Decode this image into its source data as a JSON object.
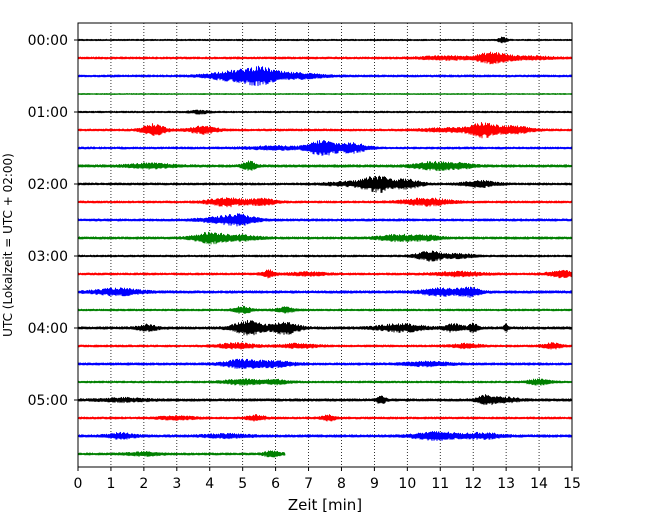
{
  "chart_data": {
    "type": "line",
    "title": "",
    "xlabel": "Zeit  [min]",
    "ylabel": "UTC (Lokalzeit = UTC + 02:00)",
    "xlim": [
      0,
      15
    ],
    "x_ticks": [
      0,
      1,
      2,
      3,
      4,
      5,
      6,
      7,
      8,
      9,
      10,
      11,
      12,
      13,
      14,
      15
    ],
    "y_tick_labels": [
      "00:00",
      "01:00",
      "02:00",
      "03:00",
      "04:00",
      "05:00"
    ],
    "row_span_minutes": 15,
    "x_grid": "dotted",
    "colors": [
      "#000000",
      "#ff0000",
      "#0000ff",
      "#008000"
    ],
    "rows": [
      {
        "start": "00:00",
        "color": "#000000",
        "end": 15,
        "noise": 0.7,
        "bursts": [
          [
            12.9,
            0.1,
            2.5
          ]
        ]
      },
      {
        "start": "00:15",
        "color": "#ff0000",
        "end": 15,
        "noise": 1.0,
        "bursts": [
          [
            12.6,
            0.35,
            5.0
          ],
          [
            11.2,
            0.6,
            1.5
          ],
          [
            13.7,
            0.5,
            1.5
          ]
        ]
      },
      {
        "start": "00:30",
        "color": "#0000ff",
        "end": 15,
        "noise": 1.0,
        "bursts": [
          [
            5.5,
            0.4,
            7.5
          ],
          [
            4.6,
            0.5,
            4.0
          ],
          [
            6.6,
            0.6,
            2.5
          ]
        ]
      },
      {
        "start": "00:45",
        "color": "#008000",
        "end": 15,
        "noise": 0.5,
        "bursts": []
      },
      {
        "start": "01:00",
        "color": "#000000",
        "end": 15,
        "noise": 0.8,
        "bursts": [
          [
            3.7,
            0.2,
            1.5
          ]
        ]
      },
      {
        "start": "01:15",
        "color": "#ff0000",
        "end": 15,
        "noise": 1.0,
        "bursts": [
          [
            2.3,
            0.25,
            5.5
          ],
          [
            3.8,
            0.3,
            3.5
          ],
          [
            12.3,
            0.3,
            6.5
          ],
          [
            13.2,
            0.4,
            3.5
          ],
          [
            11.2,
            0.5,
            1.8
          ]
        ]
      },
      {
        "start": "01:30",
        "color": "#0000ff",
        "end": 15,
        "noise": 1.0,
        "bursts": [
          [
            7.4,
            0.3,
            7.0
          ],
          [
            8.3,
            0.35,
            4.5
          ],
          [
            6.0,
            0.6,
            1.5
          ]
        ]
      },
      {
        "start": "01:45",
        "color": "#008000",
        "end": 15,
        "noise": 1.2,
        "bursts": [
          [
            2.2,
            0.5,
            2.0
          ],
          [
            5.2,
            0.15,
            4.0
          ],
          [
            10.8,
            0.4,
            3.5
          ],
          [
            11.6,
            0.3,
            2.0
          ]
        ]
      },
      {
        "start": "02:00",
        "color": "#000000",
        "end": 15,
        "noise": 1.0,
        "bursts": [
          [
            9.1,
            0.35,
            7.5
          ],
          [
            10.0,
            0.3,
            4.0
          ],
          [
            12.2,
            0.35,
            3.0
          ],
          [
            8.2,
            0.5,
            1.8
          ]
        ]
      },
      {
        "start": "02:15",
        "color": "#ff0000",
        "end": 15,
        "noise": 1.0,
        "bursts": [
          [
            4.5,
            0.4,
            4.0
          ],
          [
            5.6,
            0.3,
            3.0
          ],
          [
            10.6,
            0.5,
            3.5
          ]
        ]
      },
      {
        "start": "02:30",
        "color": "#0000ff",
        "end": 15,
        "noise": 1.1,
        "bursts": [
          [
            4.9,
            0.35,
            5.0
          ],
          [
            4.2,
            0.4,
            2.0
          ]
        ]
      },
      {
        "start": "02:45",
        "color": "#008000",
        "end": 15,
        "noise": 1.1,
        "bursts": [
          [
            4.0,
            0.35,
            5.0
          ],
          [
            4.9,
            0.4,
            2.5
          ],
          [
            9.7,
            0.4,
            3.0
          ],
          [
            10.6,
            0.3,
            2.0
          ]
        ]
      },
      {
        "start": "03:00",
        "color": "#000000",
        "end": 15,
        "noise": 0.9,
        "bursts": [
          [
            10.7,
            0.3,
            4.5
          ],
          [
            11.6,
            0.3,
            2.0
          ]
        ]
      },
      {
        "start": "03:15",
        "color": "#ff0000",
        "end": 15,
        "noise": 1.0,
        "bursts": [
          [
            5.8,
            0.15,
            3.5
          ],
          [
            7.0,
            0.4,
            1.5
          ],
          [
            11.6,
            0.5,
            2.0
          ],
          [
            14.7,
            0.3,
            3.0
          ]
        ]
      },
      {
        "start": "03:30",
        "color": "#0000ff",
        "end": 15,
        "noise": 1.2,
        "bursts": [
          [
            1.2,
            0.5,
            3.0
          ],
          [
            11.0,
            0.4,
            3.5
          ],
          [
            11.9,
            0.25,
            4.0
          ]
        ]
      },
      {
        "start": "03:45",
        "color": "#008000",
        "end": 15,
        "noise": 0.9,
        "bursts": [
          [
            5.0,
            0.2,
            3.0
          ],
          [
            6.3,
            0.2,
            2.5
          ]
        ]
      },
      {
        "start": "04:00",
        "color": "#000000",
        "end": 15,
        "noise": 1.2,
        "bursts": [
          [
            5.2,
            0.35,
            6.5
          ],
          [
            6.3,
            0.3,
            5.5
          ],
          [
            2.1,
            0.2,
            3.0
          ],
          [
            9.8,
            0.5,
            3.5
          ],
          [
            11.4,
            0.2,
            3.5
          ],
          [
            12.0,
            0.1,
            4.0
          ],
          [
            13.0,
            0.05,
            3.0
          ]
        ]
      },
      {
        "start": "04:15",
        "color": "#ff0000",
        "end": 15,
        "noise": 1.0,
        "bursts": [
          [
            4.8,
            0.4,
            2.5
          ],
          [
            6.7,
            0.4,
            2.0
          ],
          [
            11.8,
            0.3,
            2.0
          ],
          [
            14.4,
            0.2,
            2.5
          ]
        ]
      },
      {
        "start": "04:30",
        "color": "#0000ff",
        "end": 15,
        "noise": 1.1,
        "bursts": [
          [
            5.0,
            0.4,
            4.0
          ],
          [
            6.0,
            0.4,
            2.5
          ],
          [
            10.6,
            0.5,
            1.8
          ]
        ]
      },
      {
        "start": "04:45",
        "color": "#008000",
        "end": 15,
        "noise": 0.9,
        "bursts": [
          [
            5.0,
            0.4,
            2.5
          ],
          [
            6.0,
            0.3,
            2.0
          ],
          [
            14.0,
            0.25,
            2.5
          ]
        ]
      },
      {
        "start": "05:00",
        "color": "#000000",
        "end": 15,
        "noise": 1.2,
        "bursts": [
          [
            9.2,
            0.1,
            3.5
          ],
          [
            12.4,
            0.2,
            4.0
          ],
          [
            1.4,
            0.5,
            1.5
          ],
          [
            13.0,
            0.3,
            2.0
          ]
        ]
      },
      {
        "start": "05:15",
        "color": "#ff0000",
        "end": 15,
        "noise": 1.0,
        "bursts": [
          [
            5.4,
            0.2,
            2.5
          ],
          [
            7.6,
            0.15,
            2.5
          ],
          [
            3.0,
            0.4,
            1.5
          ]
        ]
      },
      {
        "start": "05:30",
        "color": "#0000ff",
        "end": 15,
        "noise": 1.2,
        "bursts": [
          [
            1.3,
            0.3,
            2.5
          ],
          [
            10.9,
            0.5,
            3.5
          ],
          [
            12.3,
            0.4,
            2.5
          ],
          [
            4.5,
            0.5,
            1.5
          ]
        ]
      },
      {
        "start": "05:45",
        "color": "#008000",
        "end": 6.3,
        "noise": 1.0,
        "bursts": [
          [
            5.9,
            0.2,
            2.5
          ],
          [
            2.0,
            0.4,
            1.5
          ]
        ]
      }
    ]
  }
}
